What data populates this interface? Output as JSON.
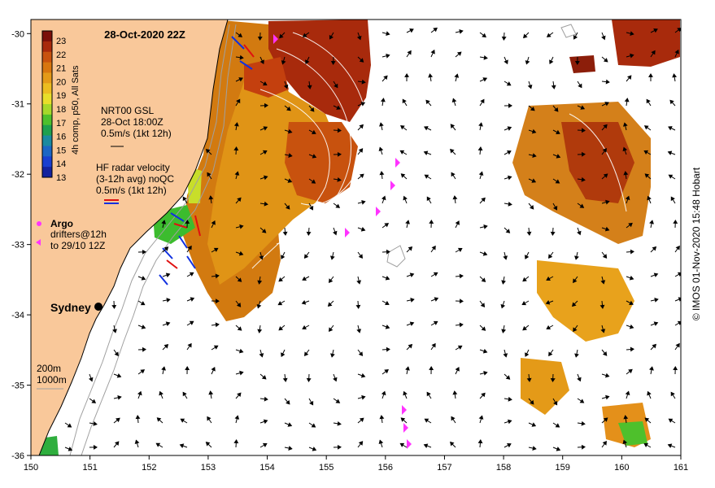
{
  "map": {
    "title": "28-Oct-2020 22Z",
    "lon_ticks": [
      "150",
      "151",
      "152",
      "153",
      "154",
      "155",
      "156",
      "157",
      "158",
      "159",
      "160",
      "161"
    ],
    "lat_ticks": [
      "-30",
      "-31",
      "-32",
      "-33",
      "-34",
      "-35",
      "-36"
    ],
    "lon_range": [
      150,
      161
    ],
    "lat_range": [
      -36,
      -29.8
    ]
  },
  "colorbar": {
    "label": "4h comp, p50, All Sats",
    "ticks": [
      "23",
      "22",
      "21",
      "20",
      "19",
      "18",
      "17",
      "16",
      "15",
      "14",
      "13"
    ],
    "colors": [
      "#7a0f0a",
      "#a82a0c",
      "#c8520e",
      "#d8760f",
      "#e49a18",
      "#ecbd20",
      "#e8de2a",
      "#a6d82a",
      "#4ec02c",
      "#1ea04e",
      "#1a8aa0",
      "#1c66c4",
      "#1a3fd0",
      "#14229e"
    ]
  },
  "legend": {
    "gsl_label": "NRT00 GSL",
    "gsl_time": "28-Oct 18:00Z",
    "gsl_scale": "0.5m/s (1kt 12h)",
    "hf_label": "HF radar velocity",
    "hf_avg": "(3-12h avg) noQC",
    "hf_scale": "0.5m/s (1kt 12h)",
    "argo_label": "Argo",
    "drifters_label": "drifters@12h",
    "drifters_to": "to 29/10 12Z",
    "depth_200": "200m",
    "depth_1000": "1000m"
  },
  "places": {
    "city": "Sydney"
  },
  "credit": "© IMOS 01-Nov-2020 15:48 Hobart",
  "colors": {
    "land": "#f9c89a",
    "sst_warm": "#c8520e",
    "sst_hot": "#a82a0c",
    "argo": "#ff33ff",
    "hf_red": "#e01010",
    "hf_blue": "#1030e0"
  }
}
